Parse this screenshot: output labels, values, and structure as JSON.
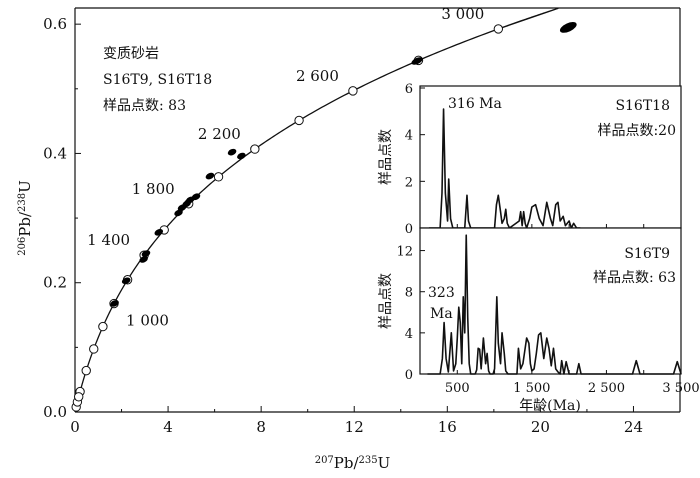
{
  "chart_data": [
    {
      "type": "scatter",
      "subtype": "concordia",
      "xlabel": {
        "sup": "207",
        "main": "Pb/",
        "sup2": "235",
        "main2": "U"
      },
      "ylabel": {
        "sup": "206",
        "main": "Pb/",
        "sup2": "238",
        "main2": "U"
      },
      "xlim": [
        0,
        26
      ],
      "ylim": [
        0,
        0.625
      ],
      "x_ticks": [
        0,
        4,
        8,
        12,
        16,
        20,
        24
      ],
      "x_tick_labels": [
        "0",
        "4",
        "8",
        "12",
        "16",
        "20",
        "24"
      ],
      "y_ticks": [
        0,
        0.2,
        0.4,
        0.6
      ],
      "y_tick_labels": [
        "0.0",
        "0.2",
        "0.4",
        "0.6"
      ],
      "concordia_age_range_ma": [
        0,
        3300
      ],
      "age_markers_ma": [
        200,
        400,
        600,
        800,
        1000,
        1200,
        1400,
        1600,
        1800,
        2000,
        2200,
        2400,
        2600,
        2800,
        3000
      ],
      "age_labels": [
        {
          "age": 1000,
          "text": "1 000",
          "placement": "right"
        },
        {
          "age": 1400,
          "text": "1 400",
          "placement": "left"
        },
        {
          "age": 1800,
          "text": "1 800",
          "placement": "left"
        },
        {
          "age": 2200,
          "text": "2 200",
          "placement": "left"
        },
        {
          "age": 2600,
          "text": "2 600",
          "placement": "left"
        },
        {
          "age": 3000,
          "text": "3 000",
          "placement": "left"
        }
      ],
      "legend": {
        "lines": [
          "变质砂岩",
          "S16T9, S16T18",
          "样品点数: 83"
        ],
        "placement": "top-left"
      },
      "data_ellipses": [
        {
          "x": 1.7,
          "y": 0.168
        },
        {
          "x": 2.2,
          "y": 0.203
        },
        {
          "x": 2.95,
          "y": 0.236
        },
        {
          "x": 3.05,
          "y": 0.245
        },
        {
          "x": 3.6,
          "y": 0.278
        },
        {
          "x": 4.45,
          "y": 0.308
        },
        {
          "x": 4.6,
          "y": 0.316
        },
        {
          "x": 4.8,
          "y": 0.322
        },
        {
          "x": 4.95,
          "y": 0.328
        },
        {
          "x": 5.2,
          "y": 0.333
        },
        {
          "x": 5.8,
          "y": 0.365
        },
        {
          "x": 6.75,
          "y": 0.402
        },
        {
          "x": 7.15,
          "y": 0.396
        },
        {
          "x": 14.7,
          "y": 0.543
        },
        {
          "x": 21.2,
          "y": 0.595
        }
      ]
    },
    {
      "type": "line",
      "subtype": "age-frequency histogram",
      "sample": "S16T18",
      "labels": [
        "S16T18",
        "样品点数:20"
      ],
      "peak_label": "316 Ma",
      "ylabel": "样品点数",
      "xlim": [
        0,
        3500
      ],
      "ylim": [
        0,
        6
      ],
      "y_ticks": [
        0,
        2,
        4,
        6
      ],
      "x": [
        120,
        270,
        295,
        316,
        340,
        370,
        385,
        410,
        440,
        600,
        630,
        650,
        680,
        1000,
        1025,
        1050,
        1080,
        1100,
        1130,
        1150,
        1170,
        1200,
        1330,
        1350,
        1370,
        1390,
        1410,
        1430,
        1470,
        1500,
        1550,
        1600,
        1650,
        1700,
        1750,
        1780,
        1820,
        1850,
        1880,
        1920,
        1950,
        2000,
        2030,
        2060,
        2100,
        2150
      ],
      "y": [
        0,
        0,
        1.5,
        5.1,
        1.5,
        0.3,
        2.1,
        0.4,
        0,
        0,
        1.4,
        0.3,
        0,
        0,
        1.0,
        1.4,
        0.7,
        0.2,
        0.4,
        0.8,
        0.2,
        0,
        0.3,
        0.7,
        0.1,
        0.7,
        0.2,
        0,
        0.4,
        0.9,
        1.0,
        0.4,
        0.1,
        1.1,
        0.4,
        0.1,
        1.0,
        1.1,
        0.3,
        0.5,
        0.1,
        0.3,
        0,
        0.2,
        0,
        0
      ]
    },
    {
      "type": "line",
      "subtype": "age-frequency histogram",
      "sample": "S16T9",
      "labels": [
        "S16T9",
        "样品点数: 63"
      ],
      "peak_label": [
        "323",
        "Ma"
      ],
      "ylabel": "样品点数",
      "xlabel": "年龄(Ma)",
      "xlim": [
        0,
        3500
      ],
      "ylim": [
        0,
        14
      ],
      "y_ticks": [
        0,
        4,
        8,
        12
      ],
      "x_ticks": [
        500,
        1500,
        2500,
        3500
      ],
      "x_tick_labels": [
        "500",
        "1 500",
        "2 500",
        "3 500"
      ],
      "x": [
        100,
        270,
        300,
        323,
        350,
        380,
        420,
        450,
        480,
        500,
        520,
        540,
        560,
        580,
        600,
        620,
        640,
        660,
        680,
        700,
        720,
        740,
        760,
        780,
        800,
        820,
        850,
        880,
        900,
        920,
        940,
        960,
        980,
        1000,
        1030,
        1050,
        1080,
        1100,
        1130,
        1150,
        1180,
        1200,
        1230,
        1260,
        1280,
        1300,
        1320,
        1350,
        1380,
        1400,
        1430,
        1460,
        1480,
        1500,
        1530,
        1560,
        1590,
        1620,
        1660,
        1700,
        1730,
        1760,
        1790,
        1820,
        1850,
        1880,
        1900,
        1930,
        1960,
        2000,
        2050,
        2080,
        2100,
        2130,
        2160,
        2200,
        2500,
        2850,
        2900,
        2950,
        3000,
        3300,
        3350,
        3400,
        3450,
        3500
      ],
      "y": [
        0,
        0,
        1.5,
        5.0,
        1.5,
        0.2,
        4.0,
        0.3,
        1.0,
        3.5,
        6.5,
        5.0,
        1.0,
        7.5,
        4.0,
        13.5,
        5.5,
        1.0,
        0,
        0,
        0,
        0,
        0.4,
        2.5,
        2.4,
        0.5,
        3.5,
        1.0,
        2.0,
        0.3,
        0,
        0,
        0,
        0.5,
        7.5,
        3.0,
        1.0,
        4.0,
        2.0,
        0.3,
        0,
        0,
        0,
        0,
        0,
        0,
        2.5,
        0.5,
        1.0,
        2.0,
        3.5,
        3.0,
        1.0,
        0.3,
        0.5,
        2.0,
        3.8,
        4.0,
        1.5,
        3.5,
        2.5,
        0.8,
        2.5,
        0.5,
        0.2,
        0,
        1.3,
        0,
        1.2,
        0,
        0,
        0,
        0,
        1.0,
        0,
        0,
        0,
        0,
        1.3,
        0,
        0,
        0,
        0,
        0,
        1.2,
        0
      ]
    }
  ]
}
